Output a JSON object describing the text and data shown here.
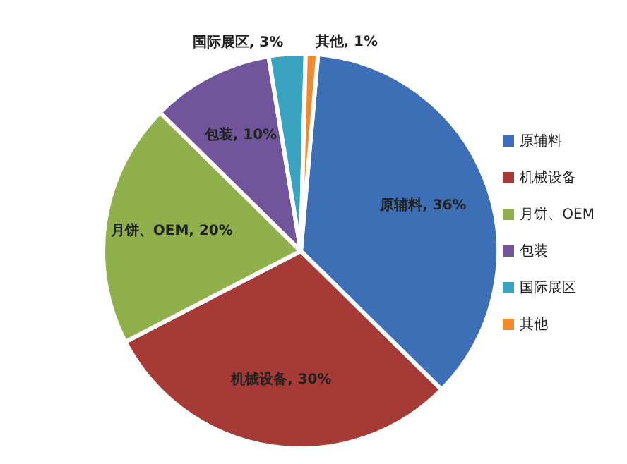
{
  "chart_data": {
    "type": "pie",
    "categories": [
      "原辅料",
      "机械设备",
      "月饼、OEM",
      "包装",
      "国际展区",
      "其他"
    ],
    "values": [
      36,
      30,
      20,
      10,
      3,
      1
    ],
    "value_labels": [
      "原辅料, 36%",
      "机械设备, 30%",
      "月饼、OEM, 20%",
      "包装, 10%",
      "国际展区, 3%",
      "其他, 1%"
    ],
    "colors": [
      "#3d6fb6",
      "#a63a37",
      "#8fb04a",
      "#71559a",
      "#3aa3bf",
      "#f08a2c"
    ],
    "legend": "right"
  }
}
